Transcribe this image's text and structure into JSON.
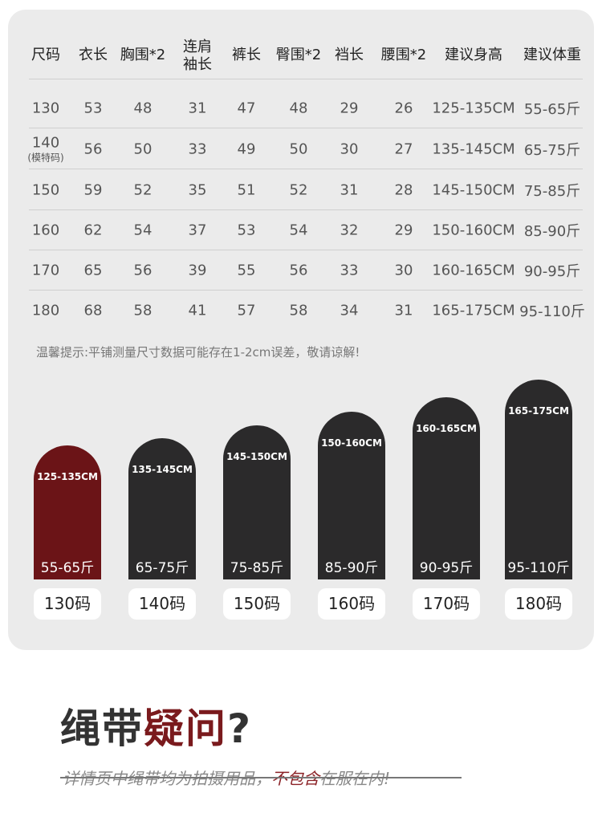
{
  "table": {
    "header": [
      "尺码",
      "衣长",
      "胸围*2",
      "连肩袖长",
      "裤长",
      "臀围*2",
      "裆长",
      "腰围*2",
      "建议身高",
      "建议体重"
    ],
    "rows": [
      {
        "size": "130",
        "values": [
          "53",
          "48",
          "31",
          "47",
          "48",
          "29",
          "26",
          "125-135CM",
          "55-65斤"
        ]
      },
      {
        "size": "140",
        "note": "(模特码)",
        "values": [
          "56",
          "50",
          "33",
          "49",
          "50",
          "30",
          "27",
          "135-145CM",
          "65-75斤"
        ]
      },
      {
        "size": "150",
        "values": [
          "59",
          "52",
          "35",
          "51",
          "52",
          "31",
          "28",
          "145-150CM",
          "75-85斤"
        ]
      },
      {
        "size": "160",
        "values": [
          "62",
          "54",
          "37",
          "53",
          "54",
          "32",
          "29",
          "150-160CM",
          "85-90斤"
        ]
      },
      {
        "size": "170",
        "values": [
          "65",
          "56",
          "39",
          "55",
          "56",
          "33",
          "30",
          "160-165CM",
          "90-95斤"
        ]
      },
      {
        "size": "180",
        "values": [
          "68",
          "58",
          "41",
          "57",
          "58",
          "34",
          "31",
          "165-175CM",
          "95-110斤"
        ]
      }
    ],
    "tip": "温馨提示:平铺测量尺寸数据可能存在1-2cm误差，敬请谅解!"
  },
  "bars": [
    {
      "height": "125-135CM",
      "weight": "55-65斤",
      "size": "130码"
    },
    {
      "height": "135-145CM",
      "weight": "65-75斤",
      "size": "140码"
    },
    {
      "height": "145-150CM",
      "weight": "75-85斤",
      "size": "150码"
    },
    {
      "height": "150-160CM",
      "weight": "85-90斤",
      "size": "160码"
    },
    {
      "height": "160-165CM",
      "weight": "90-95斤",
      "size": "170码"
    },
    {
      "height": "165-175CM",
      "weight": "95-110斤",
      "size": "180码"
    }
  ],
  "footer": {
    "headline": [
      "绳带",
      "疑问",
      "?"
    ],
    "subtitle": [
      "详情页中绳带均为拍摄用品，",
      "不包含",
      "在服在内!"
    ]
  }
}
